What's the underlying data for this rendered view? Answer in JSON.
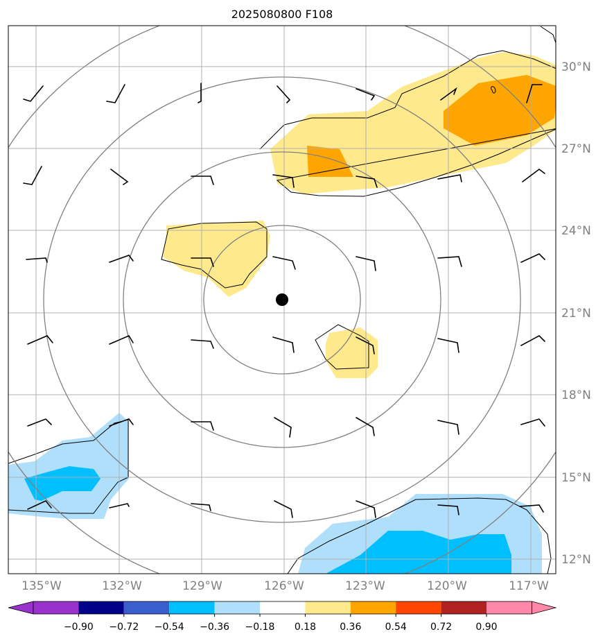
{
  "title": "2025080800 F108",
  "map": {
    "lon_range": [
      -136.0,
      -116.2
    ],
    "lat_range": [
      11.4,
      31.0
    ],
    "center_marker": {
      "lon": -126.0,
      "lat": 21.5
    },
    "lon_labels": [
      "135°W",
      "132°W",
      "129°W",
      "126°W",
      "123°W",
      "120°W",
      "117°W"
    ],
    "lat_labels": [
      "12°N",
      "15°N",
      "18°N",
      "21°N",
      "24°N",
      "27°N",
      "30°N"
    ],
    "colors": {
      "yellow": "#ffe98d",
      "orange": "#ffa500",
      "light_blue": "#afdffa",
      "deep_sky_blue": "#00bfff",
      "ring": "#808080",
      "grid": "#b0b0b0"
    }
  },
  "colorbar": {
    "labels": [
      "−0.90",
      "−0.72",
      "−0.54",
      "−0.36",
      "−0.18",
      "0.18",
      "0.36",
      "0.54",
      "0.72",
      "0.90"
    ],
    "colors": [
      "#9932cc",
      "#00008b",
      "#3a5fcd",
      "#00bfff",
      "#afdffa",
      "#ffffff",
      "#ffe98d",
      "#ffa500",
      "#ff4500",
      "#b22222",
      "#ff88aa"
    ]
  }
}
